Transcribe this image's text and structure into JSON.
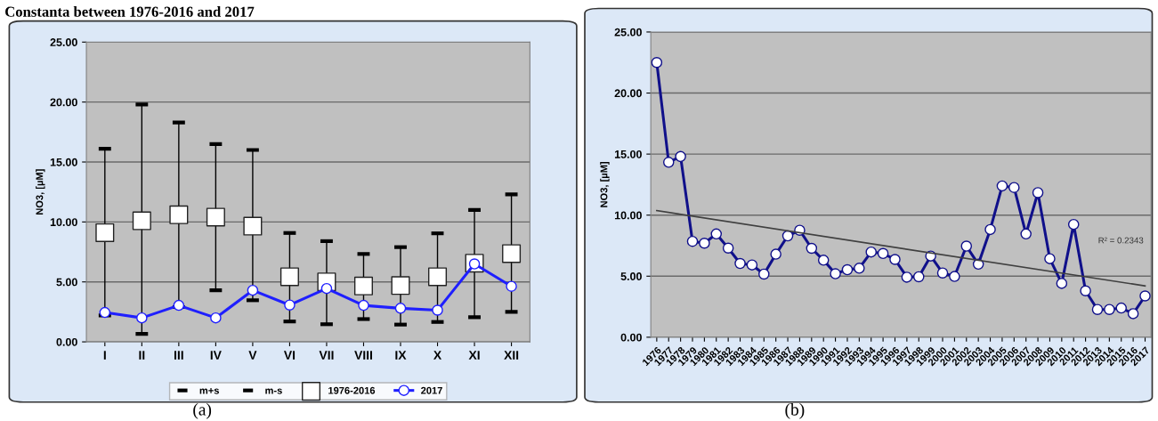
{
  "chart_data": [
    {
      "type": "scatter",
      "ylabel": "NO3, [µM]",
      "categories": [
        "I",
        "II",
        "III",
        "IV",
        "V",
        "VI",
        "VII",
        "VIII",
        "IX",
        "X",
        "XI",
        "XII"
      ],
      "ylim": [
        0,
        25
      ],
      "yticks": [
        {
          "value": 0,
          "label": "0.00"
        },
        {
          "value": 5,
          "label": "5.00"
        },
        {
          "value": 10,
          "label": "10.00"
        },
        {
          "value": 15,
          "label": "15.00"
        },
        {
          "value": 20,
          "label": "20.00"
        },
        {
          "value": 25,
          "label": "25.00"
        }
      ],
      "grid": "y",
      "legend": "bottom",
      "series": [
        {
          "name": "1976-2016",
          "marker": "square",
          "color": "#ffffff",
          "values": [
            9.1,
            10.1,
            10.6,
            10.4,
            9.65,
            5.43,
            5.0,
            4.66,
            4.7,
            5.43,
            6.56,
            7.36
          ],
          "errors": [
            [
              2.2,
              16.1
            ],
            [
              0.67,
              19.8
            ],
            [
              2.9,
              18.3
            ],
            [
              4.3,
              16.5
            ],
            [
              3.47,
              16.0
            ],
            [
              1.7,
              9.08
            ],
            [
              1.47,
              8.4
            ],
            [
              1.9,
              7.33
            ],
            [
              1.44,
              7.9
            ],
            [
              1.66,
              9.05
            ],
            [
              2.06,
              11.0
            ],
            [
              2.5,
              12.3
            ]
          ]
        },
        {
          "name": "2017",
          "type": "line",
          "marker": "circle",
          "color": "#1f1fff",
          "values": [
            2.45,
            2.0,
            3.04,
            2.0,
            4.3,
            3.07,
            4.45,
            3.04,
            2.8,
            2.64,
            6.5,
            4.63
          ]
        }
      ],
      "annotations": [
        "Constanta between 1976-2016 and 2017",
        "(a)",
        "m+s",
        "m-s"
      ]
    },
    {
      "type": "line",
      "ylabel": "NO3, [µM]",
      "categories": [
        "1976",
        "1977",
        "1978",
        "1979",
        "1980",
        "1981",
        "1982",
        "1983",
        "1984",
        "1985",
        "1986",
        "1987",
        "1988",
        "1989",
        "1990",
        "1991",
        "1992",
        "1993",
        "1994",
        "1995",
        "1996",
        "1997",
        "1998",
        "1999",
        "2000",
        "2001",
        "2002",
        "2003",
        "2004",
        "2005",
        "2006",
        "2007",
        "2008",
        "2009",
        "2010",
        "2011",
        "2012",
        "2013",
        "2014",
        "2015",
        "2016",
        "2017"
      ],
      "ylim": [
        0,
        25
      ],
      "yticks": [
        {
          "value": 0,
          "label": "0.00"
        },
        {
          "value": 5,
          "label": "5.00"
        },
        {
          "value": 10,
          "label": "10.00"
        },
        {
          "value": 15,
          "label": "15.00"
        },
        {
          "value": 20,
          "label": "20.00"
        },
        {
          "value": 25,
          "label": "25.00"
        }
      ],
      "grid": "y",
      "series": [
        {
          "marker": "circle",
          "color": "#10108a",
          "values": [
            22.5,
            14.33,
            14.8,
            7.85,
            7.7,
            8.46,
            7.3,
            6.04,
            5.92,
            5.17,
            6.8,
            8.3,
            8.76,
            7.28,
            6.31,
            5.2,
            5.53,
            5.65,
            6.98,
            6.86,
            6.37,
            4.92,
            4.95,
            6.65,
            5.26,
            4.98,
            7.46,
            5.98,
            8.82,
            12.39,
            12.26,
            8.46,
            11.84,
            6.43,
            4.41,
            9.24,
            3.8,
            2.27,
            2.27,
            2.39,
            1.93,
            3.38
          ]
        },
        {
          "marker": "none",
          "color": "#404040",
          "values": [
            10.37,
            null,
            null,
            null,
            null,
            null,
            null,
            null,
            null,
            null,
            null,
            null,
            null,
            null,
            null,
            null,
            null,
            null,
            null,
            null,
            null,
            null,
            null,
            null,
            null,
            null,
            null,
            null,
            null,
            null,
            null,
            null,
            null,
            null,
            null,
            null,
            null,
            null,
            null,
            null,
            null,
            4.2
          ]
        }
      ],
      "annotations": [
        "R² = 0.2343",
        "(b)"
      ]
    }
  ]
}
